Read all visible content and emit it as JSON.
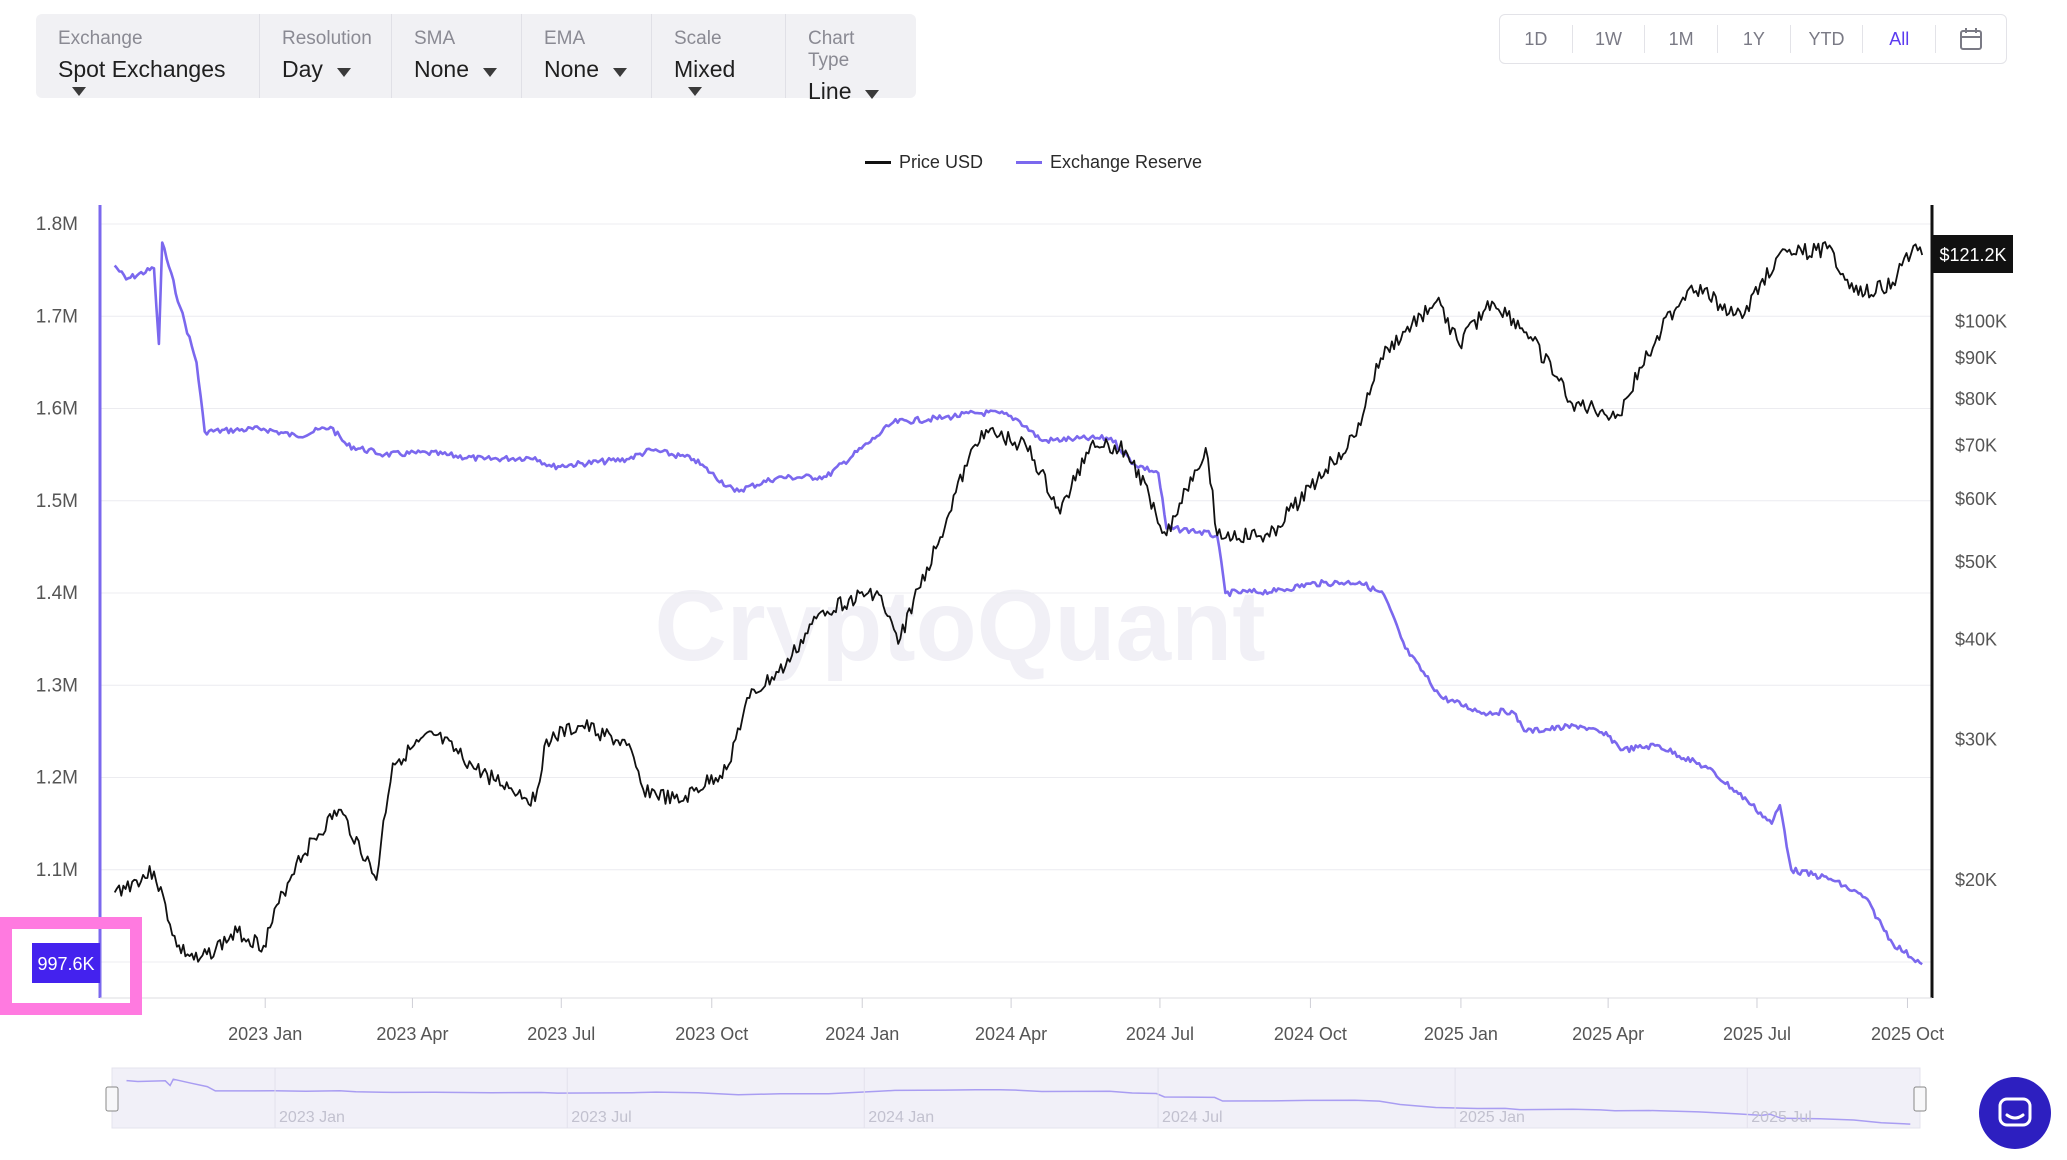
{
  "toolbar": {
    "groups": [
      {
        "label": "Exchange",
        "value": "Spot Exchanges"
      },
      {
        "label": "Resolution",
        "value": "Day"
      },
      {
        "label": "SMA",
        "value": "None"
      },
      {
        "label": "EMA",
        "value": "None"
      },
      {
        "label": "Scale",
        "value": "Mixed"
      },
      {
        "label": "Chart Type",
        "value": "Line"
      }
    ]
  },
  "range": {
    "buttons": [
      "1D",
      "1W",
      "1M",
      "1Y",
      "YTD",
      "All"
    ],
    "active": "All",
    "calendar_icon": "calendar-icon"
  },
  "watermark": "CryptoQuant",
  "colors": {
    "reserve": "#7b68ee",
    "price": "#111111",
    "accent": "#5b3bf0",
    "highlight": "#ff7ae0"
  },
  "chart_data": {
    "type": "line",
    "legend_position": "top-center",
    "grid": true,
    "x_labels": [
      "2023 Jan",
      "2023 Apr",
      "2023 Jul",
      "2023 Oct",
      "2024 Jan",
      "2024 Apr",
      "2024 Jul",
      "2024 Oct",
      "2025 Jan",
      "2025 Apr",
      "2025 Jul",
      "2025 Oct"
    ],
    "y_left_ticks": [
      "1.8M",
      "1.7M",
      "1.6M",
      "1.5M",
      "1.4M",
      "1.3M",
      "1.2M",
      "1.1M"
    ],
    "y_left_range": [
      997600,
      1800000
    ],
    "y_right_ticks": [
      "$100K",
      "$90K",
      "$80K",
      "$70K",
      "$60K",
      "$50K",
      "$40K",
      "$30K",
      "$20K"
    ],
    "y_right_scale": "log",
    "current_reserve_label": "997.6K",
    "current_price_label": "$121.2K",
    "series": [
      {
        "name": "Price USD",
        "axis": "right",
        "points": [
          [
            "2022-10-01",
            19300
          ],
          [
            "2022-10-25",
            20500
          ],
          [
            "2022-11-08",
            16500
          ],
          [
            "2022-11-21",
            15800
          ],
          [
            "2022-12-15",
            17200
          ],
          [
            "2022-12-31",
            16550
          ],
          [
            "2023-01-20",
            21000
          ],
          [
            "2023-02-15",
            24500
          ],
          [
            "2023-03-10",
            20000
          ],
          [
            "2023-03-20",
            28000
          ],
          [
            "2023-04-14",
            30400
          ],
          [
            "2023-05-10",
            27500
          ],
          [
            "2023-06-15",
            25100
          ],
          [
            "2023-06-22",
            30000
          ],
          [
            "2023-07-14",
            31200
          ],
          [
            "2023-08-10",
            29500
          ],
          [
            "2023-08-20",
            26000
          ],
          [
            "2023-09-11",
            25000
          ],
          [
            "2023-10-10",
            27500
          ],
          [
            "2023-10-24",
            33800
          ],
          [
            "2023-11-15",
            37000
          ],
          [
            "2023-12-08",
            43500
          ],
          [
            "2024-01-10",
            46000
          ],
          [
            "2024-01-23",
            39500
          ],
          [
            "2024-02-15",
            52000
          ],
          [
            "2024-03-05",
            66000
          ],
          [
            "2024-03-14",
            73000
          ],
          [
            "2024-04-10",
            70000
          ],
          [
            "2024-05-01",
            57500
          ],
          [
            "2024-05-21",
            71000
          ],
          [
            "2024-06-10",
            69000
          ],
          [
            "2024-07-05",
            54000
          ],
          [
            "2024-07-29",
            69500
          ],
          [
            "2024-08-05",
            54000
          ],
          [
            "2024-09-06",
            53800
          ],
          [
            "2024-10-01",
            62000
          ],
          [
            "2024-10-29",
            72000
          ],
          [
            "2024-11-13",
            90000
          ],
          [
            "2024-12-17",
            106000
          ],
          [
            "2024-12-31",
            93500
          ],
          [
            "2025-01-20",
            106000
          ],
          [
            "2025-02-10",
            97000
          ],
          [
            "2025-03-10",
            79000
          ],
          [
            "2025-04-08",
            76300
          ],
          [
            "2025-05-01",
            96000
          ],
          [
            "2025-05-22",
            111000
          ],
          [
            "2025-06-22",
            101000
          ],
          [
            "2025-07-14",
            121000
          ],
          [
            "2025-08-13",
            123500
          ],
          [
            "2025-09-01",
            108000
          ],
          [
            "2025-09-22",
            112000
          ],
          [
            "2025-10-06",
            125000
          ],
          [
            "2025-10-10",
            121200
          ]
        ]
      },
      {
        "name": "Exchange Reserve",
        "axis": "left",
        "points": [
          [
            "2022-10-01",
            1755000
          ],
          [
            "2022-10-08",
            1740000
          ],
          [
            "2022-10-25",
            1752000
          ],
          [
            "2022-10-28",
            1670000
          ],
          [
            "2022-10-30",
            1780000
          ],
          [
            "2022-11-10",
            1710000
          ],
          [
            "2022-11-20",
            1650000
          ],
          [
            "2022-11-25",
            1575000
          ],
          [
            "2022-12-31",
            1578000
          ],
          [
            "2023-01-20",
            1570000
          ],
          [
            "2023-02-10",
            1580000
          ],
          [
            "2023-02-20",
            1560000
          ],
          [
            "2023-03-15",
            1550000
          ],
          [
            "2023-04-10",
            1552000
          ],
          [
            "2023-05-15",
            1545000
          ],
          [
            "2023-06-15",
            1547000
          ],
          [
            "2023-06-25",
            1537000
          ],
          [
            "2023-08-10",
            1545000
          ],
          [
            "2023-08-25",
            1555000
          ],
          [
            "2023-09-20",
            1545000
          ],
          [
            "2023-10-15",
            1510000
          ],
          [
            "2023-11-10",
            1525000
          ],
          [
            "2023-12-10",
            1526000
          ],
          [
            "2024-01-10",
            1570000
          ],
          [
            "2024-01-20",
            1585000
          ],
          [
            "2024-02-20",
            1590000
          ],
          [
            "2024-03-10",
            1595000
          ],
          [
            "2024-03-25",
            1595000
          ],
          [
            "2024-04-05",
            1588000
          ],
          [
            "2024-04-20",
            1565000
          ],
          [
            "2024-05-10",
            1567000
          ],
          [
            "2024-06-01",
            1568000
          ],
          [
            "2024-06-15",
            1540000
          ],
          [
            "2024-06-30",
            1530000
          ],
          [
            "2024-07-05",
            1470000
          ],
          [
            "2024-07-20",
            1468000
          ],
          [
            "2024-08-05",
            1462000
          ],
          [
            "2024-08-10",
            1400000
          ],
          [
            "2024-09-10",
            1402000
          ],
          [
            "2024-10-01",
            1410000
          ],
          [
            "2024-10-31",
            1412000
          ],
          [
            "2024-11-15",
            1398000
          ],
          [
            "2024-11-28",
            1340000
          ],
          [
            "2024-12-20",
            1287000
          ],
          [
            "2025-01-15",
            1270000
          ],
          [
            "2025-02-01",
            1272000
          ],
          [
            "2025-02-10",
            1250000
          ],
          [
            "2025-03-15",
            1256000
          ],
          [
            "2025-04-01",
            1245000
          ],
          [
            "2025-04-10",
            1230000
          ],
          [
            "2025-05-01",
            1235000
          ],
          [
            "2025-06-01",
            1210000
          ],
          [
            "2025-06-25",
            1175000
          ],
          [
            "2025-07-10",
            1150000
          ],
          [
            "2025-07-15",
            1170000
          ],
          [
            "2025-07-22",
            1100000
          ],
          [
            "2025-08-15",
            1090000
          ],
          [
            "2025-09-05",
            1070000
          ],
          [
            "2025-09-22",
            1020000
          ],
          [
            "2025-10-10",
            997600
          ]
        ]
      }
    ]
  },
  "navigator": {
    "labels": [
      "2023 Jan",
      "2023 Jul",
      "2024 Jan",
      "2024 Jul",
      "2025 Jan",
      "2025 Jul"
    ]
  },
  "chat_icon": "chat-icon"
}
